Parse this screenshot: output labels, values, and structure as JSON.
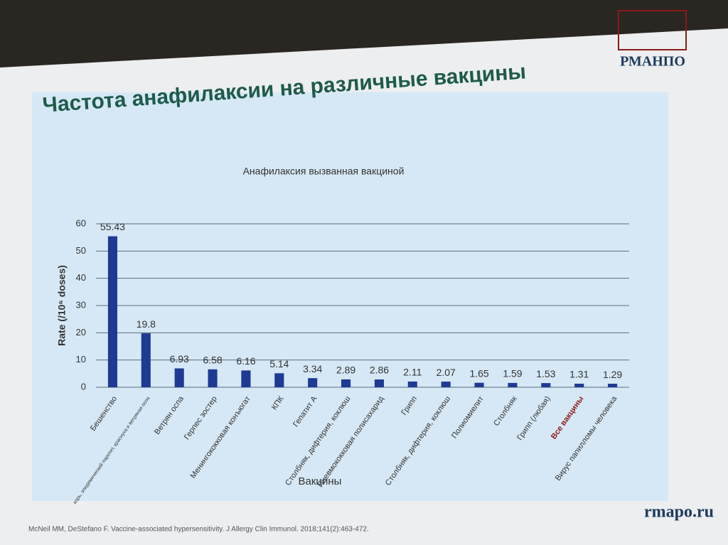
{
  "slide_title": "Частота анафилаксии на различные вакцины",
  "logo": "РМАНПО",
  "site": "rmapo.ru",
  "citation": "McNeil MM, DeStefano F. Vaccine-associated hypersensitivity. J Allergy Clin Immunol. 2018;141(2):463-472.",
  "chart_data": {
    "type": "bar",
    "title": "Анафилаксия вызванная вакциной",
    "y_label": "Rate (/10⁶ doses)",
    "x_label": "Вакцины",
    "categories": [
      "Бешенство",
      "корь, эпидемический паротит, краснуха и ветряная оспа",
      "Ветрян оспа",
      "Герпес зостер",
      "Менингококковая конъюгат",
      "КПК",
      "Гепатит А",
      "Столбняк, дифтерия, коклюш",
      "Пневмококковая полисахарид",
      "Грипп",
      "Столбняк, дифтерия, коклюш",
      "Полиомиелит",
      "Столбняк",
      "Грипп (любая)",
      "Все вакцины",
      "Вирус папилломы человека"
    ],
    "values": [
      55.43,
      19.8,
      6.93,
      6.58,
      6.16,
      5.14,
      3.34,
      2.89,
      2.86,
      2.11,
      2.07,
      1.65,
      1.59,
      1.53,
      1.31,
      1.29
    ],
    "color": "#1f3a93",
    "category_label_colors": [
      "#333",
      "#333",
      "#333",
      "#333",
      "#333",
      "#333",
      "#333",
      "#333",
      "#333",
      "#333",
      "#333",
      "#333",
      "#333",
      "#333",
      "#8b1a1a",
      "#333"
    ],
    "ylim": [
      0,
      60
    ],
    "yticks": [
      0,
      10,
      20,
      30,
      40,
      50,
      60
    ],
    "grid": true
  }
}
